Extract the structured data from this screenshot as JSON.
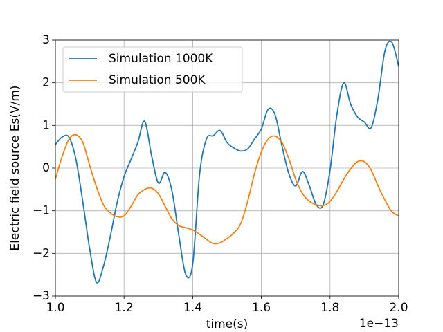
{
  "chart_data": {
    "type": "line",
    "x_label": "time(s)",
    "x_offset_label": "1e−13",
    "y_label": "Electric field source Es(V/m)",
    "x": [
      1.0,
      1.02,
      1.04,
      1.06,
      1.08,
      1.1,
      1.12,
      1.14,
      1.16,
      1.18,
      1.2,
      1.22,
      1.24,
      1.26,
      1.28,
      1.3,
      1.32,
      1.34,
      1.36,
      1.38,
      1.4,
      1.42,
      1.44,
      1.46,
      1.48,
      1.5,
      1.52,
      1.54,
      1.56,
      1.58,
      1.6,
      1.62,
      1.64,
      1.66,
      1.68,
      1.7,
      1.72,
      1.74,
      1.76,
      1.78,
      1.8,
      1.82,
      1.84,
      1.86,
      1.88,
      1.9,
      1.92,
      1.94,
      1.96,
      1.98,
      2.0
    ],
    "series": [
      {
        "name": "Simulation 1000K",
        "color": "#1f77b4",
        "values": [
          0.55,
          0.73,
          0.72,
          0.2,
          -0.8,
          -1.9,
          -2.68,
          -2.3,
          -1.6,
          -0.8,
          -0.2,
          0.2,
          0.6,
          1.1,
          0.3,
          -0.35,
          -0.1,
          -0.55,
          -1.6,
          -2.5,
          -2.25,
          -0.15,
          0.68,
          0.76,
          0.88,
          0.6,
          0.47,
          0.4,
          0.45,
          0.68,
          0.92,
          1.38,
          1.25,
          0.52,
          -0.13,
          -0.42,
          -0.08,
          -0.42,
          -0.86,
          -0.86,
          -0.05,
          1.25,
          2.0,
          1.5,
          1.2,
          1.08,
          0.95,
          1.65,
          2.75,
          2.95,
          2.38
        ]
      },
      {
        "name": "Simulation 500K",
        "color": "#ff7f0e",
        "values": [
          -0.26,
          0.28,
          0.68,
          0.78,
          0.6,
          0.06,
          -0.45,
          -0.86,
          -1.05,
          -1.14,
          -1.12,
          -0.9,
          -0.63,
          -0.5,
          -0.47,
          -0.6,
          -0.9,
          -1.2,
          -1.35,
          -1.4,
          -1.45,
          -1.55,
          -1.67,
          -1.77,
          -1.75,
          -1.65,
          -1.52,
          -1.3,
          -0.78,
          -0.13,
          0.38,
          0.68,
          0.75,
          0.6,
          0.22,
          -0.26,
          -0.6,
          -0.78,
          -0.86,
          -0.88,
          -0.78,
          -0.55,
          -0.26,
          -0.02,
          0.15,
          0.15,
          -0.05,
          -0.42,
          -0.75,
          -1.02,
          -1.12
        ]
      }
    ],
    "xlim": [
      1.0,
      2.0
    ],
    "xticks": [
      {
        "value": 1.0,
        "label": "1.0"
      },
      {
        "value": 1.2,
        "label": "1.2"
      },
      {
        "value": 1.4,
        "label": "1.4"
      },
      {
        "value": 1.6,
        "label": "1.6"
      },
      {
        "value": 1.8,
        "label": "1.8"
      },
      {
        "value": 2.0,
        "label": "2.0"
      }
    ],
    "ylim": [
      -3,
      3
    ],
    "yticks": [
      {
        "value": -3,
        "label": "−3"
      },
      {
        "value": -2,
        "label": "−2"
      },
      {
        "value": -1,
        "label": "−1"
      },
      0,
      1,
      2,
      3
    ],
    "grid": true,
    "legend": "upper left"
  }
}
